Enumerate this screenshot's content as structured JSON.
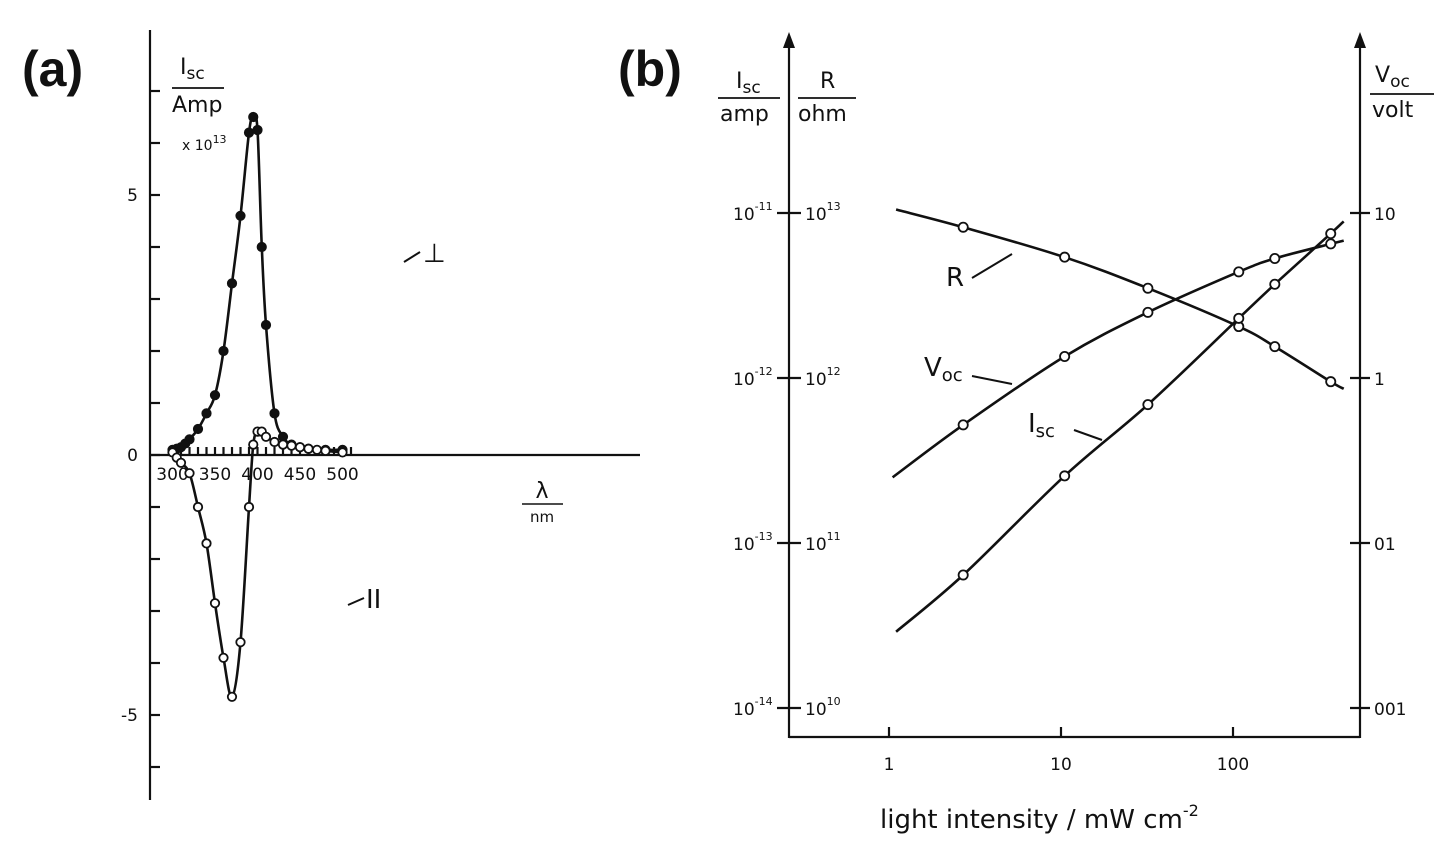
{
  "chart_data": [
    {
      "panel": "(a)",
      "type": "line",
      "ylabel": {
        "numerator": "I",
        "sub": "sc",
        "denominator": "Amp",
        "multiplier": "x 10",
        "multiplier_exp": "13"
      },
      "xlabel": {
        "numerator": "λ",
        "denominator": "nm"
      },
      "xlim": [
        295,
        520
      ],
      "ylim": [
        -6,
        7.3
      ],
      "x_ticks": [
        "300",
        "350",
        "400",
        "450",
        "500"
      ],
      "y_ticks": [
        "5",
        "0",
        "-5"
      ],
      "series": [
        {
          "name": "⊥",
          "marker": "filled",
          "points": [
            [
              300,
              0.1
            ],
            [
              305,
              0.12
            ],
            [
              310,
              0.15
            ],
            [
              315,
              0.22
            ],
            [
              320,
              0.3
            ],
            [
              330,
              0.5
            ],
            [
              340,
              0.8
            ],
            [
              350,
              1.15
            ],
            [
              360,
              2.0
            ],
            [
              370,
              3.3
            ],
            [
              380,
              4.6
            ],
            [
              390,
              6.2
            ],
            [
              395,
              6.5
            ],
            [
              400,
              6.25
            ],
            [
              405,
              4.0
            ],
            [
              410,
              2.5
            ],
            [
              420,
              0.8
            ],
            [
              430,
              0.35
            ],
            [
              440,
              0.2
            ],
            [
              450,
              0.15
            ],
            [
              460,
              0.12
            ],
            [
              480,
              0.1
            ],
            [
              500,
              0.1
            ]
          ]
        },
        {
          "name": "II",
          "marker": "open",
          "points": [
            [
              300,
              0.05
            ],
            [
              305,
              -0.05
            ],
            [
              310,
              -0.15
            ],
            [
              320,
              -0.35
            ],
            [
              330,
              -1.0
            ],
            [
              340,
              -1.7
            ],
            [
              350,
              -2.85
            ],
            [
              360,
              -3.9
            ],
            [
              370,
              -4.65
            ],
            [
              380,
              -3.6
            ],
            [
              390,
              -1.0
            ],
            [
              395,
              0.2
            ],
            [
              400,
              0.45
            ],
            [
              405,
              0.45
            ],
            [
              410,
              0.35
            ],
            [
              420,
              0.25
            ],
            [
              430,
              0.2
            ],
            [
              440,
              0.18
            ],
            [
              450,
              0.15
            ],
            [
              460,
              0.12
            ],
            [
              470,
              0.1
            ],
            [
              480,
              0.08
            ],
            [
              500,
              0.05
            ]
          ]
        }
      ]
    },
    {
      "panel": "(b)",
      "type": "line",
      "x_scale": "log",
      "xlim": [
        0.3,
        450
      ],
      "xlabel": {
        "text": "light  intensity / mW cm",
        "exp": "-2"
      },
      "x_ticks": [
        "1",
        "10",
        "100"
      ],
      "y_left_labels": [
        {
          "numerator": "I",
          "sub": "sc",
          "denominator": "amp"
        },
        {
          "numerator": "R",
          "sub": "",
          "denominator": "ohm"
        }
      ],
      "y_right_label": {
        "numerator": "V",
        "sub": "oc",
        "denominator": "volt"
      },
      "y_left_ticks": [
        {
          "isc_base": "10",
          "isc_exp": "-11",
          "r_base": "10",
          "r_exp": "13"
        },
        {
          "isc_base": "10",
          "isc_exp": "-12",
          "r_base": "10",
          "r_exp": "12"
        },
        {
          "isc_base": "10",
          "isc_exp": "-13",
          "r_base": "10",
          "r_exp": "11"
        },
        {
          "isc_base": "10",
          "isc_exp": "-14",
          "r_base": "10",
          "r_exp": "10"
        }
      ],
      "y_right_ticks": [
        "10",
        "1",
        "01",
        "001"
      ],
      "isc_range": [
        1e-14,
        1e-11
      ],
      "r_range": [
        10000000000.0,
        10000000000000.0
      ],
      "voc_range": [
        0.001,
        10
      ],
      "series": [
        {
          "name": "R",
          "axis": "R",
          "curve": [
            [
              1.1,
              10500000000000.0
            ],
            [
              2.7,
              8200000000000.0
            ],
            [
              10.5,
              5400000000000.0
            ],
            [
              32,
              3500000000000.0
            ],
            [
              108,
              2050000000000.0
            ],
            [
              175,
              1550000000000.0
            ],
            [
              370,
              950000000000.0
            ],
            [
              440,
              860000000000.0
            ]
          ],
          "markers": [
            [
              2.7,
              8200000000000.0
            ],
            [
              10.5,
              5400000000000.0
            ],
            [
              32,
              3500000000000.0
            ],
            [
              108,
              2050000000000.0
            ],
            [
              175,
              1550000000000.0
            ],
            [
              370,
              950000000000.0
            ]
          ]
        },
        {
          "name": "V",
          "sub": "oc",
          "axis": "Voc",
          "curve": [
            [
              1.05,
              0.25
            ],
            [
              2.7,
              0.52
            ],
            [
              10.5,
              1.35
            ],
            [
              32,
              2.5
            ],
            [
              108,
              4.4
            ],
            [
              175,
              5.3
            ],
            [
              370,
              6.5
            ],
            [
              440,
              6.8
            ]
          ],
          "markers": [
            [
              2.7,
              0.52
            ],
            [
              10.5,
              1.35
            ],
            [
              32,
              2.5
            ],
            [
              108,
              4.4
            ],
            [
              175,
              5.3
            ],
            [
              370,
              6.5
            ]
          ]
        },
        {
          "name": "I",
          "sub": "sc",
          "axis": "Isc",
          "curve": [
            [
              1.1,
              2.9e-14
            ],
            [
              2.7,
              6.4e-14
            ],
            [
              10.5,
              2.55e-13
            ],
            [
              32,
              6.9e-13
            ],
            [
              108,
              2.3e-12
            ],
            [
              175,
              3.7e-12
            ],
            [
              370,
              7.5e-12
            ],
            [
              440,
              8.9e-12
            ]
          ],
          "markers": [
            [
              2.7,
              6.4e-14
            ],
            [
              10.5,
              2.55e-13
            ],
            [
              32,
              6.9e-13
            ],
            [
              108,
              2.3e-12
            ],
            [
              175,
              3.7e-12
            ],
            [
              370,
              7.5e-12
            ]
          ]
        }
      ]
    }
  ]
}
